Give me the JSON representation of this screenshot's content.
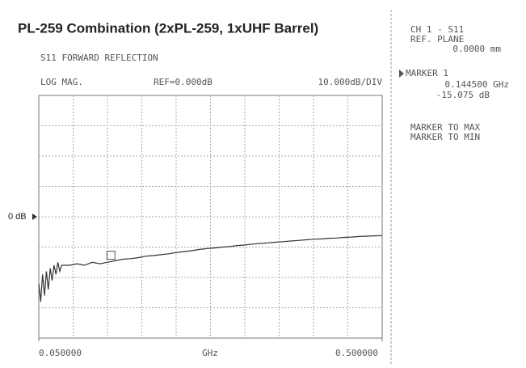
{
  "chart_data": {
    "type": "line",
    "title": "PL-259 Combination (2xPL-259, 1xUHF Barrel)",
    "subtitle": "S11 FORWARD REFLECTION",
    "format": "LOG MAG.",
    "reference": "REF=0.000dB",
    "scale": "10.000dB/DIV",
    "xlabel": "GHz",
    "x": [
      0.05,
      0.0525,
      0.055,
      0.0575,
      0.06,
      0.0625,
      0.065,
      0.0675,
      0.07,
      0.0725,
      0.075,
      0.0775,
      0.08,
      0.09,
      0.1,
      0.11,
      0.12,
      0.13,
      0.14,
      0.15,
      0.16,
      0.17,
      0.18,
      0.19,
      0.2,
      0.21,
      0.22,
      0.23,
      0.24,
      0.25,
      0.26,
      0.27,
      0.28,
      0.29,
      0.3,
      0.31,
      0.32,
      0.33,
      0.34,
      0.35,
      0.36,
      0.37,
      0.38,
      0.39,
      0.4,
      0.41,
      0.42,
      0.43,
      0.44,
      0.45,
      0.46,
      0.47,
      0.48,
      0.49,
      0.5
    ],
    "values": [
      -22,
      -28,
      -19,
      -26,
      -18,
      -24,
      -17,
      -21,
      -16,
      -19,
      -15,
      -18,
      -16,
      -16,
      -15.5,
      -16,
      -15,
      -15.5,
      -15,
      -14.5,
      -14,
      -13.8,
      -13.5,
      -13,
      -12.8,
      -12.5,
      -12.2,
      -11.8,
      -11.5,
      -11.2,
      -10.8,
      -10.5,
      -10.3,
      -10,
      -9.8,
      -9.5,
      -9.3,
      -9,
      -8.8,
      -8.6,
      -8.4,
      -8.2,
      -8,
      -7.8,
      -7.6,
      -7.4,
      -7.3,
      -7.1,
      -7,
      -6.8,
      -6.7,
      -6.5,
      -6.4,
      -6.3,
      -6.2
    ],
    "color": "#333333",
    "xlim": [
      0.05,
      0.5
    ],
    "ylim": [
      -40,
      40
    ],
    "xticks": [
      {
        "value": 0.05,
        "label": "0.050000"
      },
      {
        "value": 0.5,
        "label": "0.500000"
      }
    ],
    "yticks": [
      {
        "value": 0,
        "label": "0 dB"
      }
    ],
    "grid": true,
    "marker": {
      "x": 0.1445,
      "y": -15.075,
      "x_label": "0.144500 GHz",
      "y_label": "-15.075 dB"
    },
    "panel": {
      "channel": "CH 1 - S11",
      "ref_plane": "REF. PLANE",
      "ref_plane_value": "0.0000 mm",
      "marker_name": "MARKER 1",
      "menu": [
        "MARKER TO MAX",
        "MARKER TO MIN"
      ]
    }
  }
}
